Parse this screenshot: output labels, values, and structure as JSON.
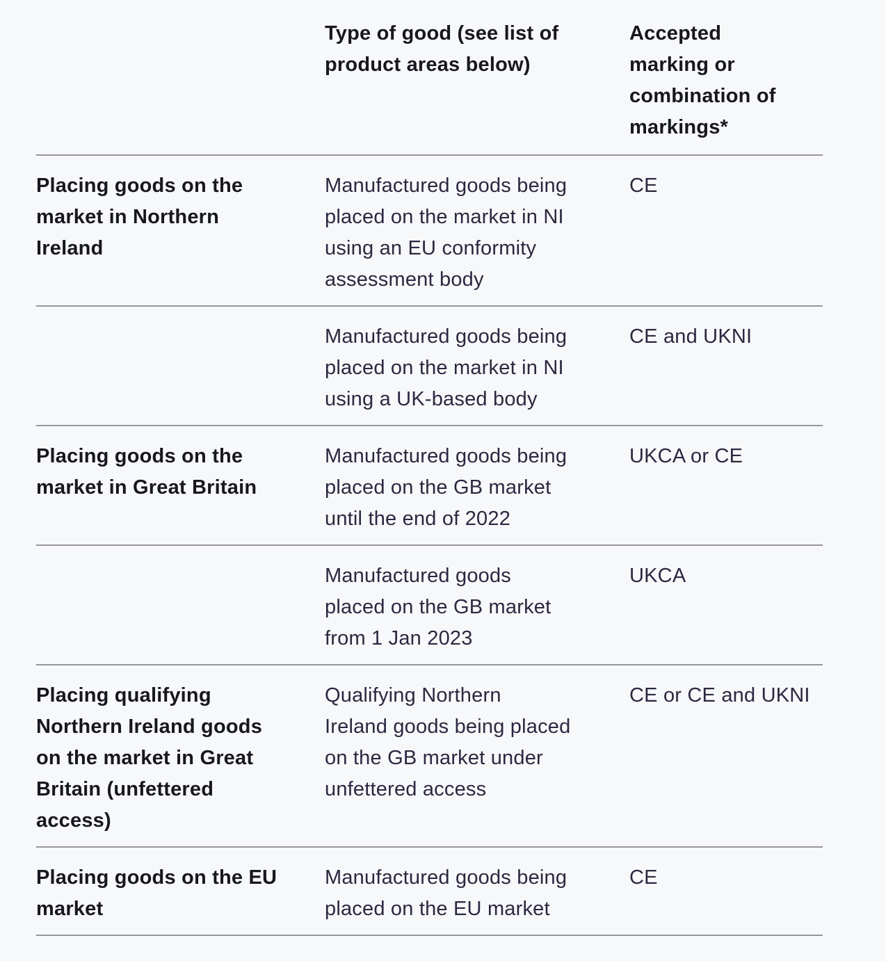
{
  "colors": {
    "background": "#f7f8fa",
    "heading_text": "#17171f",
    "body_text": "#2b2840",
    "border": "#96969e"
  },
  "table": {
    "header": {
      "scenario": "",
      "type_of_good": "Type of good (see list of\nproduct areas below)",
      "marking": "Accepted\nmarking or\ncombination of\nmarkings*"
    },
    "rows": [
      {
        "scenario": "Placing goods on the\nmarket in Northern\nIreland",
        "type_of_good": "Manufactured goods being\nplaced on the market in NI\nusing an EU conformity\nassessment body",
        "marking": "CE"
      },
      {
        "scenario": "",
        "type_of_good": "Manufactured goods being\nplaced on the market in NI\nusing a UK-based body",
        "marking": "CE and UKNI"
      },
      {
        "scenario": "Placing goods on the\nmarket in Great Britain",
        "type_of_good": "Manufactured goods being\nplaced on the GB market\nuntil the end of 2022",
        "marking": "UKCA or CE"
      },
      {
        "scenario": "",
        "type_of_good": "Manufactured goods\nplaced on the GB market\nfrom 1 Jan 2023",
        "marking": "UKCA"
      },
      {
        "scenario": "Placing qualifying\nNorthern Ireland goods\non the market in Great\nBritain (unfettered\naccess)",
        "type_of_good": "Qualifying Northern\nIreland goods being placed\non the GB market under\nunfettered access",
        "marking": "CE or CE and UKNI"
      },
      {
        "scenario": "Placing goods on the EU\nmarket",
        "type_of_good": "Manufactured goods being\nplaced on the EU market",
        "marking": "CE"
      }
    ]
  }
}
